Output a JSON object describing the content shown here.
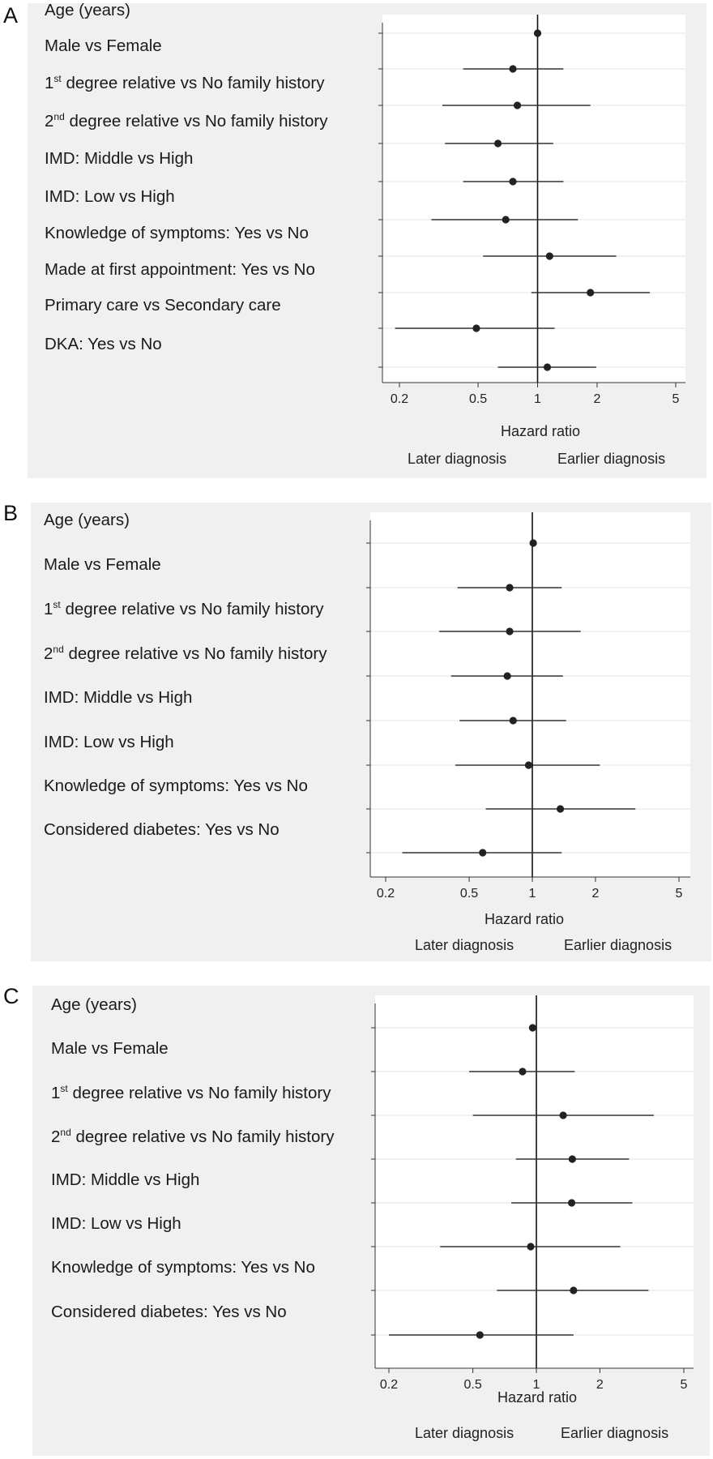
{
  "chart_data": [
    {
      "type": "forest",
      "panel": "A",
      "xscale": "log",
      "xlim": [
        0.18,
        6
      ],
      "xticks": [
        0.2,
        0.5,
        1,
        2,
        5
      ],
      "xtick_labels": [
        "0.2",
        "0.5",
        "1",
        "2",
        "5"
      ],
      "reference_line": 1,
      "xlabel": "Hazard ratio",
      "direction_labels": [
        "Later diagnosis",
        "Earlier diagnosis"
      ],
      "rows": [
        {
          "label": {
            "pre": "Age (years)",
            "sup": "",
            "post": ""
          },
          "hr": 1.0,
          "lo": 0.97,
          "hi": 1.03
        },
        {
          "label": {
            "pre": "Male vs Female",
            "sup": "",
            "post": ""
          },
          "hr": 0.75,
          "lo": 0.42,
          "hi": 1.35
        },
        {
          "label": {
            "pre": "1",
            "sup": "st",
            "post": " degree relative vs No family history"
          },
          "hr": 0.79,
          "lo": 0.33,
          "hi": 1.85
        },
        {
          "label": {
            "pre": "2",
            "sup": "nd",
            "post": " degree relative vs No family history"
          },
          "hr": 0.63,
          "lo": 0.34,
          "hi": 1.2
        },
        {
          "label": {
            "pre": "IMD: Middle vs High",
            "sup": "",
            "post": ""
          },
          "hr": 0.75,
          "lo": 0.42,
          "hi": 1.35
        },
        {
          "label": {
            "pre": "IMD: Low vs High",
            "sup": "",
            "post": ""
          },
          "hr": 0.69,
          "lo": 0.29,
          "hi": 1.6
        },
        {
          "label": {
            "pre": "Knowledge of symptoms: Yes vs No",
            "sup": "",
            "post": ""
          },
          "hr": 1.15,
          "lo": 0.53,
          "hi": 2.5
        },
        {
          "label": {
            "pre": "Made at first appointment: Yes vs No",
            "sup": "",
            "post": ""
          },
          "hr": 1.85,
          "lo": 0.93,
          "hi": 3.7
        },
        {
          "label": {
            "pre": "Primary care vs Secondary care",
            "sup": "",
            "post": ""
          },
          "hr": 0.49,
          "lo": 0.19,
          "hi": 1.22
        },
        {
          "label": {
            "pre": "DKA: Yes vs No",
            "sup": "",
            "post": ""
          },
          "hr": 1.12,
          "lo": 0.63,
          "hi": 1.98
        }
      ]
    },
    {
      "type": "forest",
      "panel": "B",
      "xscale": "log",
      "xlim": [
        0.18,
        6
      ],
      "xticks": [
        0.2,
        0.5,
        1,
        2,
        5
      ],
      "xtick_labels": [
        "0.2",
        "0.5",
        "1",
        "2",
        "5"
      ],
      "reference_line": 1,
      "xlabel": "Hazard ratio",
      "direction_labels": [
        "Later diagnosis",
        "Earlier diagnosis"
      ],
      "rows": [
        {
          "label": {
            "pre": "Age (years)",
            "sup": "",
            "post": ""
          },
          "hr": 1.01,
          "lo": 0.98,
          "hi": 1.04
        },
        {
          "label": {
            "pre": "Male vs Female",
            "sup": "",
            "post": ""
          },
          "hr": 0.78,
          "lo": 0.44,
          "hi": 1.38
        },
        {
          "label": {
            "pre": "1",
            "sup": "st",
            "post": " degree relative vs No family history"
          },
          "hr": 0.78,
          "lo": 0.36,
          "hi": 1.7
        },
        {
          "label": {
            "pre": "2",
            "sup": "nd",
            "post": " degree relative vs No family history"
          },
          "hr": 0.76,
          "lo": 0.41,
          "hi": 1.4
        },
        {
          "label": {
            "pre": "IMD: Middle vs High",
            "sup": "",
            "post": ""
          },
          "hr": 0.81,
          "lo": 0.45,
          "hi": 1.45
        },
        {
          "label": {
            "pre": "IMD: Low vs High",
            "sup": "",
            "post": ""
          },
          "hr": 0.96,
          "lo": 0.43,
          "hi": 2.1
        },
        {
          "label": {
            "pre": "Knowledge of symptoms: Yes vs No",
            "sup": "",
            "post": ""
          },
          "hr": 1.36,
          "lo": 0.6,
          "hi": 3.1
        },
        {
          "label": {
            "pre": "Considered diabetes: Yes vs No",
            "sup": "",
            "post": ""
          },
          "hr": 0.58,
          "lo": 0.24,
          "hi": 1.38
        }
      ]
    },
    {
      "type": "forest",
      "panel": "C",
      "xscale": "log",
      "xlim": [
        0.18,
        6
      ],
      "xticks": [
        0.2,
        0.5,
        1,
        2,
        5
      ],
      "xtick_labels": [
        "0.2",
        "0.5",
        "1",
        "2",
        "5"
      ],
      "reference_line": 1,
      "xlabel": "Hazard ratio",
      "direction_labels": [
        "Later diagnosis",
        "Earlier diagnosis"
      ],
      "rows": [
        {
          "label": {
            "pre": "Age (years)",
            "sup": "",
            "post": ""
          },
          "hr": 0.96,
          "lo": 0.93,
          "hi": 1.0
        },
        {
          "label": {
            "pre": "Male vs Female",
            "sup": "",
            "post": ""
          },
          "hr": 0.86,
          "lo": 0.48,
          "hi": 1.52
        },
        {
          "label": {
            "pre": "1",
            "sup": "st",
            "post": " degree relative vs No family history"
          },
          "hr": 1.34,
          "lo": 0.5,
          "hi": 3.6
        },
        {
          "label": {
            "pre": "2",
            "sup": "nd",
            "post": " degree relative vs No family history"
          },
          "hr": 1.48,
          "lo": 0.8,
          "hi": 2.75
        },
        {
          "label": {
            "pre": "IMD: Middle vs High",
            "sup": "",
            "post": ""
          },
          "hr": 1.47,
          "lo": 0.76,
          "hi": 2.85
        },
        {
          "label": {
            "pre": "IMD: Low vs High",
            "sup": "",
            "post": ""
          },
          "hr": 0.94,
          "lo": 0.35,
          "hi": 2.5
        },
        {
          "label": {
            "pre": "Knowledge of symptoms: Yes vs No",
            "sup": "",
            "post": ""
          },
          "hr": 1.5,
          "lo": 0.65,
          "hi": 3.4
        },
        {
          "label": {
            "pre": "Considered diabetes: Yes vs No",
            "sup": "",
            "post": ""
          },
          "hr": 0.54,
          "lo": 0.2,
          "hi": 1.5
        }
      ]
    }
  ]
}
